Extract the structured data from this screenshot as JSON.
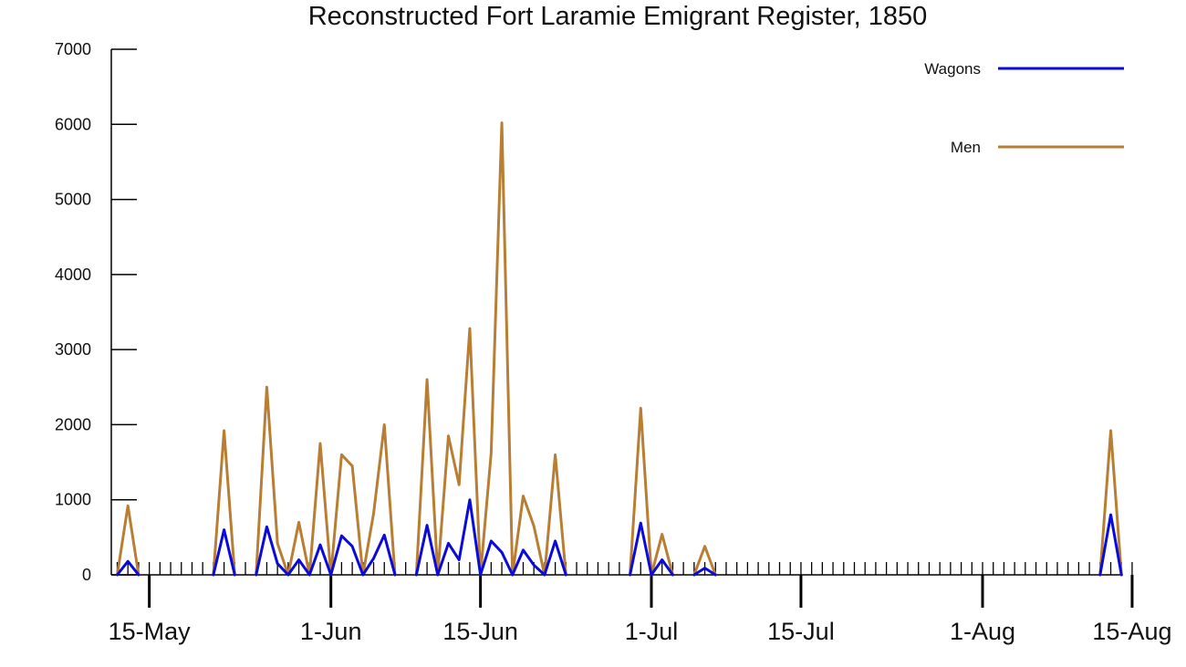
{
  "chart_data": {
    "type": "line",
    "title": "Reconstructed Fort Laramie Emigrant Register, 1850",
    "xlabel": "",
    "ylabel": "",
    "ylim": [
      0,
      7000
    ],
    "yticks": [
      0,
      1000,
      2000,
      3000,
      4000,
      5000,
      6000,
      7000
    ],
    "xlim": [
      "1850-05-12",
      "1850-08-15"
    ],
    "xticks": [
      {
        "date": "1850-05-15",
        "label": "15-May"
      },
      {
        "date": "1850-06-01",
        "label": "1-Jun"
      },
      {
        "date": "1850-06-15",
        "label": "15-Jun"
      },
      {
        "date": "1850-07-01",
        "label": "1-Jul"
      },
      {
        "date": "1850-07-15",
        "label": "15-Jul"
      },
      {
        "date": "1850-08-01",
        "label": "1-Aug"
      },
      {
        "date": "1850-08-15",
        "label": "15-Aug"
      }
    ],
    "minor_ticks": "daily",
    "legend_position": "top-right",
    "grid": false,
    "x": [
      "1850-05-12",
      "1850-05-13",
      "1850-05-14",
      "1850-05-15",
      "1850-05-16",
      "1850-05-17",
      "1850-05-18",
      "1850-05-19",
      "1850-05-20",
      "1850-05-21",
      "1850-05-22",
      "1850-05-23",
      "1850-05-24",
      "1850-05-25",
      "1850-05-26",
      "1850-05-27",
      "1850-05-28",
      "1850-05-29",
      "1850-05-30",
      "1850-05-31",
      "1850-06-01",
      "1850-06-02",
      "1850-06-03",
      "1850-06-04",
      "1850-06-05",
      "1850-06-06",
      "1850-06-07",
      "1850-06-08",
      "1850-06-09",
      "1850-06-10",
      "1850-06-11",
      "1850-06-12",
      "1850-06-13",
      "1850-06-14",
      "1850-06-15",
      "1850-06-16",
      "1850-06-17",
      "1850-06-18",
      "1850-06-19",
      "1850-06-20",
      "1850-06-21",
      "1850-06-22",
      "1850-06-23",
      "1850-06-24",
      "1850-06-25",
      "1850-06-26",
      "1850-06-27",
      "1850-06-28",
      "1850-06-29",
      "1850-06-30",
      "1850-07-01",
      "1850-07-02",
      "1850-07-03",
      "1850-07-04",
      "1850-07-05",
      "1850-07-06",
      "1850-07-07",
      "1850-07-08",
      "1850-07-09",
      "1850-08-12",
      "1850-08-13",
      "1850-08-14",
      "1850-08-15"
    ],
    "series": [
      {
        "name": "Wagons",
        "color": "#0a0adc",
        "values": [
          0,
          180,
          0,
          null,
          null,
          null,
          null,
          null,
          null,
          0,
          600,
          0,
          null,
          0,
          640,
          150,
          0,
          200,
          0,
          400,
          0,
          520,
          380,
          0,
          220,
          530,
          0,
          null,
          0,
          660,
          0,
          420,
          200,
          1000,
          0,
          450,
          300,
          0,
          330,
          130,
          0,
          450,
          0,
          null,
          null,
          null,
          null,
          null,
          0,
          690,
          0,
          200,
          0,
          null,
          0,
          90,
          0,
          null,
          null,
          0,
          800,
          0,
          null
        ]
      },
      {
        "name": "Men",
        "color": "#b87e33",
        "values": [
          0,
          920,
          0,
          null,
          null,
          null,
          null,
          null,
          null,
          0,
          1920,
          0,
          null,
          0,
          2500,
          420,
          0,
          700,
          0,
          1750,
          0,
          1600,
          1450,
          0,
          820,
          2000,
          0,
          null,
          0,
          2600,
          0,
          1850,
          1200,
          3280,
          0,
          1620,
          6020,
          0,
          1050,
          650,
          0,
          1600,
          0,
          null,
          null,
          null,
          null,
          null,
          0,
          2220,
          0,
          540,
          0,
          null,
          0,
          380,
          0,
          null,
          null,
          0,
          1920,
          0,
          null
        ]
      }
    ]
  }
}
